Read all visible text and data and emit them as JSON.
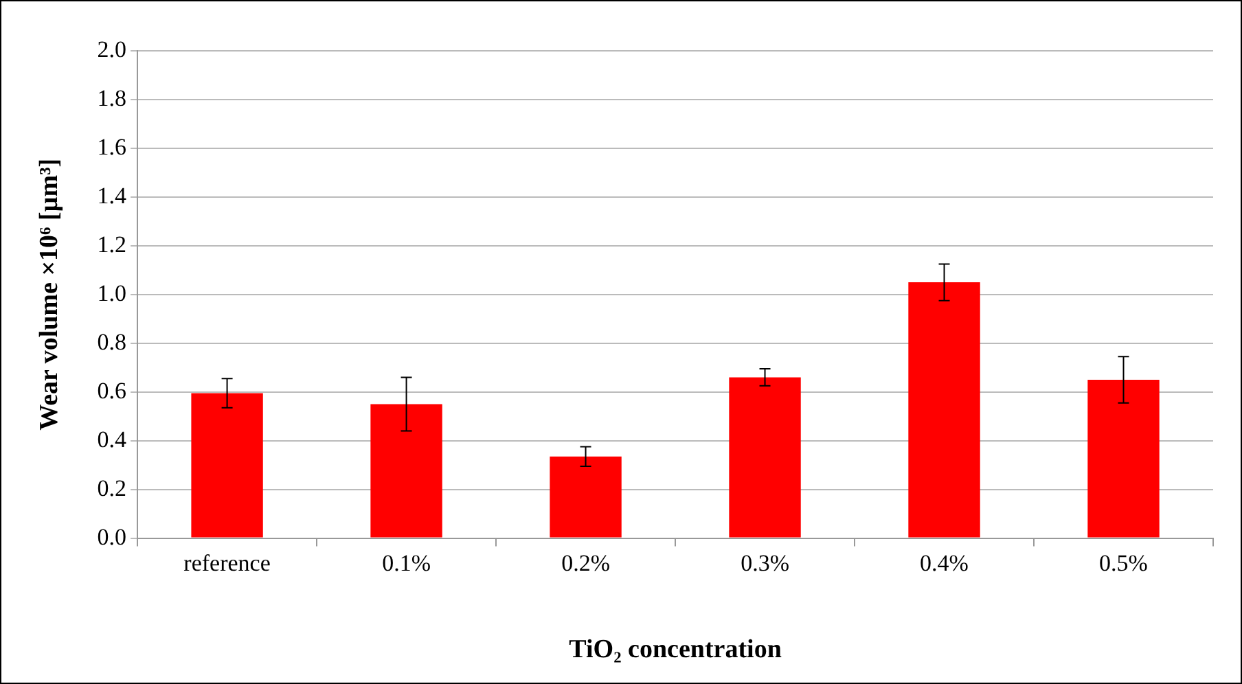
{
  "chart_data": {
    "type": "bar",
    "xlabel": "TiO₂ concentration",
    "ylabel": "Wear volume ×10⁶ [µm³]",
    "categories": [
      "reference",
      "0.1%",
      "0.2%",
      "0.3%",
      "0.4%",
      "0.5%"
    ],
    "values": [
      0.595,
      0.55,
      0.335,
      0.66,
      1.05,
      0.65
    ],
    "errors": [
      0.06,
      0.11,
      0.04,
      0.035,
      0.075,
      0.095
    ],
    "color": "#ff0000",
    "ylim": [
      0,
      2
    ],
    "yticks": [
      {
        "value": 0,
        "label": "0.0"
      },
      0.2,
      0.4,
      0.6,
      0.8,
      {
        "value": 1,
        "label": "1.0"
      },
      1.2,
      1.4,
      1.6,
      1.8,
      {
        "value": 2,
        "label": "2.0"
      }
    ],
    "grid": "y",
    "legend": false
  }
}
